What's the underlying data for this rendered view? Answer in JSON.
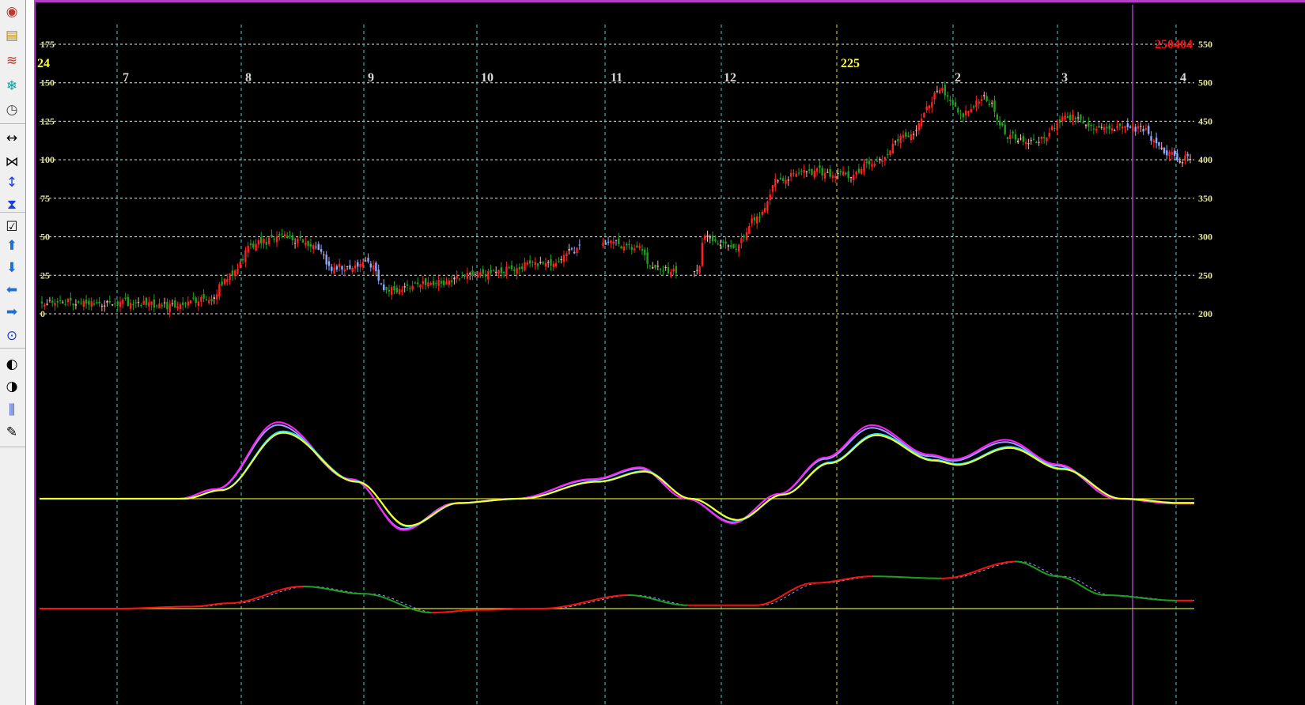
{
  "toolbar": {
    "buttons": [
      {
        "name": "target-icon",
        "glyph": "◉",
        "color": "#c0392b"
      },
      {
        "name": "message-icon",
        "glyph": "▤",
        "color": "#b8860b"
      },
      {
        "name": "chart-lines-icon",
        "glyph": "≋",
        "color": "#c0392b"
      },
      {
        "name": "snowflake-icon",
        "glyph": "❄",
        "color": "#0aa0a0"
      },
      {
        "name": "clock-icon",
        "glyph": "◷",
        "color": "#444444"
      },
      {
        "name": "expand-horizontal-icon",
        "glyph": "↔",
        "color": "#000000"
      },
      {
        "name": "compress-horizontal-icon",
        "glyph": "⋈",
        "color": "#000000"
      },
      {
        "name": "expand-vertical-icon",
        "glyph": "↕",
        "color": "#1a3fd8"
      },
      {
        "name": "compress-vertical-icon",
        "glyph": "⧗",
        "color": "#1a3fd8"
      },
      {
        "name": "checkbox-icon",
        "glyph": "☑",
        "color": "#000000"
      },
      {
        "name": "arrow-up-icon",
        "glyph": "⬆",
        "color": "#1f6fd0"
      },
      {
        "name": "arrow-down-icon",
        "glyph": "⬇",
        "color": "#1f6fd0"
      },
      {
        "name": "arrow-left-icon",
        "glyph": "⬅",
        "color": "#1f6fd0"
      },
      {
        "name": "arrow-right-icon",
        "glyph": "➡",
        "color": "#1f6fd0"
      },
      {
        "name": "crosshair-icon",
        "glyph": "⊙",
        "color": "#1a3fd8"
      },
      {
        "name": "half-circle-icon",
        "glyph": "◐",
        "color": "#000000"
      },
      {
        "name": "half-circle-alt-icon",
        "glyph": "◑",
        "color": "#000000"
      },
      {
        "name": "candlestick-icon",
        "glyph": "⫼",
        "color": "#1a3fd8"
      },
      {
        "name": "pencil-icon",
        "glyph": "✎",
        "color": "#000000"
      }
    ]
  },
  "chart_data": [
    {
      "type": "candlestick",
      "title": "",
      "corner_label": "250404",
      "year_label_left": "24",
      "year_label_mid": "225",
      "month_labels": [
        "7",
        "8",
        "9",
        "10",
        "11",
        "12",
        "2",
        "3",
        "4"
      ],
      "left_axis": {
        "ticks": [
          0,
          25,
          50,
          75,
          100,
          125,
          150,
          175
        ],
        "range": [
          0,
          175
        ]
      },
      "right_axis": {
        "ticks": [
          200,
          250,
          300,
          350,
          400,
          450,
          500,
          550
        ],
        "range": [
          200,
          550
        ]
      },
      "grid": true,
      "colors": {
        "up": "#ff2020",
        "down": "#20a020",
        "down_alt": "#8fa8ff",
        "doji": "#ffb0b0",
        "axis_text": "#e8e8a0",
        "corner": "#ff1010",
        "month_text": "#d8d8d8",
        "year_text": "#ffff40"
      },
      "price_keypoints": [
        {
          "m": 0.0,
          "p": 215
        },
        {
          "m": 0.4,
          "p": 210
        },
        {
          "m": 0.75,
          "p": 220
        },
        {
          "m": 0.9,
          "p": 250
        },
        {
          "m": 1.1,
          "p": 290
        },
        {
          "m": 1.35,
          "p": 300
        },
        {
          "m": 1.6,
          "p": 288
        },
        {
          "m": 1.75,
          "p": 260
        },
        {
          "m": 2.05,
          "p": 265
        },
        {
          "m": 2.2,
          "p": 230
        },
        {
          "m": 2.6,
          "p": 240
        },
        {
          "m": 3.0,
          "p": 250
        },
        {
          "m": 3.5,
          "p": 265
        },
        {
          "m": 3.9,
          "p": 290
        },
        {
          "m": 4.0,
          "p": 292
        },
        {
          "m": 4.3,
          "p": 285
        },
        {
          "m": 4.4,
          "p": 258
        },
        {
          "m": 4.8,
          "p": 255
        },
        {
          "m": 4.85,
          "p": 300
        },
        {
          "m": 5.1,
          "p": 285
        },
        {
          "m": 5.3,
          "p": 325
        },
        {
          "m": 5.5,
          "p": 375
        },
        {
          "m": 5.8,
          "p": 385
        },
        {
          "m": 6.1,
          "p": 380
        },
        {
          "m": 6.3,
          "p": 395
        },
        {
          "m": 6.6,
          "p": 430
        },
        {
          "m": 6.9,
          "p": 490
        },
        {
          "m": 7.1,
          "p": 460
        },
        {
          "m": 7.3,
          "p": 480
        },
        {
          "m": 7.55,
          "p": 430
        },
        {
          "m": 7.8,
          "p": 425
        },
        {
          "m": 8.1,
          "p": 455
        },
        {
          "m": 8.4,
          "p": 440
        },
        {
          "m": 8.7,
          "p": 440
        },
        {
          "m": 8.9,
          "p": 410
        },
        {
          "m": 9.2,
          "p": 375
        },
        {
          "m": 9.45,
          "p": 385
        },
        {
          "m": 9.65,
          "p": 350
        },
        {
          "m": 9.9,
          "p": 315
        },
        {
          "m": 10.2,
          "p": 275
        },
        {
          "m": 10.5,
          "p": 265
        },
        {
          "m": 10.65,
          "p": 270
        },
        {
          "m": 10.85,
          "p": 300
        },
        {
          "m": 11.05,
          "p": 310
        },
        {
          "m": 11.2,
          "p": 295
        },
        {
          "m": 11.3,
          "p": 290
        }
      ],
      "oscillator_keypoints": [
        {
          "m": 0.0,
          "v": 0.0
        },
        {
          "m": 0.5,
          "v": 0.0
        },
        {
          "m": 0.8,
          "v": 0.1
        },
        {
          "m": 1.3,
          "v": 0.78
        },
        {
          "m": 1.9,
          "v": 0.2
        },
        {
          "m": 2.35,
          "v": -0.32
        },
        {
          "m": 2.8,
          "v": -0.05
        },
        {
          "m": 3.3,
          "v": 0.0
        },
        {
          "m": 3.9,
          "v": 0.2
        },
        {
          "m": 4.3,
          "v": 0.32
        },
        {
          "m": 4.7,
          "v": 0.0
        },
        {
          "m": 5.1,
          "v": -0.25
        },
        {
          "m": 5.5,
          "v": 0.05
        },
        {
          "m": 5.9,
          "v": 0.42
        },
        {
          "m": 6.3,
          "v": 0.75
        },
        {
          "m": 6.8,
          "v": 0.45
        },
        {
          "m": 7.0,
          "v": 0.4
        },
        {
          "m": 7.5,
          "v": 0.6
        },
        {
          "m": 8.0,
          "v": 0.35
        },
        {
          "m": 8.5,
          "v": 0.0
        },
        {
          "m": 9.0,
          "v": -0.05
        },
        {
          "m": 9.4,
          "v": -0.12
        },
        {
          "m": 9.9,
          "v": -0.25
        },
        {
          "m": 10.3,
          "v": -0.35
        },
        {
          "m": 10.6,
          "v": -0.65
        },
        {
          "m": 10.9,
          "v": -0.7
        },
        {
          "m": 11.1,
          "v": -0.55
        },
        {
          "m": 11.4,
          "v": -0.15
        }
      ],
      "oscillator_colors": {
        "fast_a": "#ff20ff",
        "fast_b": "#9999ff",
        "slow_a": "#ffff20",
        "slow_b": "#20e8ff",
        "zero": "#d8d820"
      },
      "momentum_keypoints": [
        {
          "m": 0.0,
          "v": 0.0
        },
        {
          "m": 0.6,
          "v": 0.03
        },
        {
          "m": 0.9,
          "v": 0.08
        },
        {
          "m": 1.5,
          "v": 0.33
        },
        {
          "m": 2.0,
          "v": 0.22
        },
        {
          "m": 2.6,
          "v": -0.06
        },
        {
          "m": 3.0,
          "v": -0.02
        },
        {
          "m": 3.5,
          "v": 0.0
        },
        {
          "m": 4.2,
          "v": 0.2
        },
        {
          "m": 4.7,
          "v": 0.05
        },
        {
          "m": 5.3,
          "v": 0.05
        },
        {
          "m": 5.8,
          "v": 0.38
        },
        {
          "m": 6.3,
          "v": 0.48
        },
        {
          "m": 6.9,
          "v": 0.45
        },
        {
          "m": 7.6,
          "v": 0.7
        },
        {
          "m": 8.0,
          "v": 0.48
        },
        {
          "m": 8.4,
          "v": 0.2
        },
        {
          "m": 9.0,
          "v": 0.12
        },
        {
          "m": 9.7,
          "v": -0.25
        },
        {
          "m": 10.2,
          "v": -0.35
        },
        {
          "m": 10.5,
          "v": -0.5
        },
        {
          "m": 10.9,
          "v": -0.62
        },
        {
          "m": 11.2,
          "v": -0.5
        },
        {
          "m": 11.6,
          "v": -0.25
        }
      ],
      "momentum_colors": {
        "up": "#ff1010",
        "down": "#20a020",
        "signal": "#9999ff",
        "zero": "#d8d820"
      },
      "vertical_markers": {
        "month_line": "#40d0d0",
        "year_line": "#e0e020",
        "cursor": "#a040c0"
      }
    }
  ]
}
